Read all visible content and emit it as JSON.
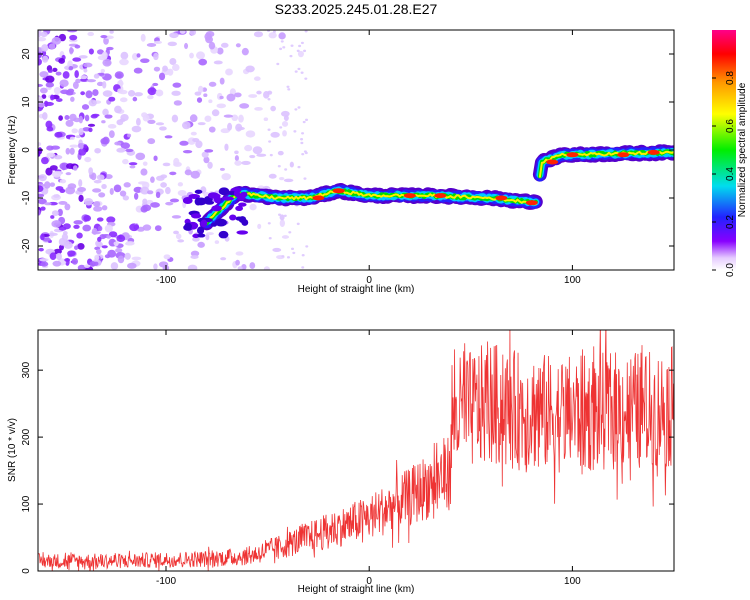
{
  "chart_data": [
    {
      "type": "heatmap",
      "title": "S233.2025.245.01.28.E27",
      "xlabel": "Height of straight line (km)",
      "ylabel": "Frequency (Hz)",
      "xlim": [
        -163,
        150
      ],
      "ylim": [
        -25,
        25
      ],
      "xticks": [
        -100,
        0,
        100
      ],
      "yticks": [
        -20,
        -10,
        0,
        10,
        20
      ],
      "colorbar": {
        "label": "Normalized spectral amplitude",
        "range": [
          0.0,
          1.0
        ],
        "ticks": [
          "0.0",
          "0.2",
          "0.4",
          "0.6",
          "0.8"
        ]
      },
      "ridge": {
        "description": "dominant frequency track",
        "points": [
          {
            "x": -80,
            "y": -15
          },
          {
            "x": -65,
            "y": -9
          },
          {
            "x": -45,
            "y": -10
          },
          {
            "x": -30,
            "y": -10
          },
          {
            "x": -15,
            "y": -8.5
          },
          {
            "x": 0,
            "y": -9.5
          },
          {
            "x": 30,
            "y": -9.5
          },
          {
            "x": 60,
            "y": -10
          },
          {
            "x": 82,
            "y": -11
          },
          {
            "x": 85,
            "y": -2.5
          },
          {
            "x": 95,
            "y": -1
          },
          {
            "x": 100,
            "y": -1
          },
          {
            "x": 150,
            "y": -0.5
          }
        ]
      }
    },
    {
      "type": "line",
      "xlabel": "Height of straight line (km)",
      "ylabel": "SNR (10 * v/v)",
      "xlim": [
        -163,
        150
      ],
      "ylim": [
        0,
        360
      ],
      "xticks": [
        -100,
        0,
        100
      ],
      "yticks": [
        0,
        100,
        200,
        300
      ],
      "color": "#ee3333",
      "series": [
        {
          "name": "SNR",
          "x": [
            -163,
            -140,
            -120,
            -100,
            -80,
            -60,
            -50,
            -40,
            -30,
            -20,
            -10,
            0,
            10,
            20,
            30,
            40,
            41,
            50,
            60,
            70,
            80,
            90,
            100,
            110,
            120,
            130,
            140,
            150
          ],
          "values": [
            15,
            15,
            15,
            17,
            18,
            22,
            30,
            40,
            50,
            60,
            70,
            80,
            95,
            110,
            130,
            150,
            230,
            240,
            250,
            240,
            240,
            235,
            235,
            235,
            240,
            240,
            240,
            245
          ]
        }
      ]
    }
  ]
}
